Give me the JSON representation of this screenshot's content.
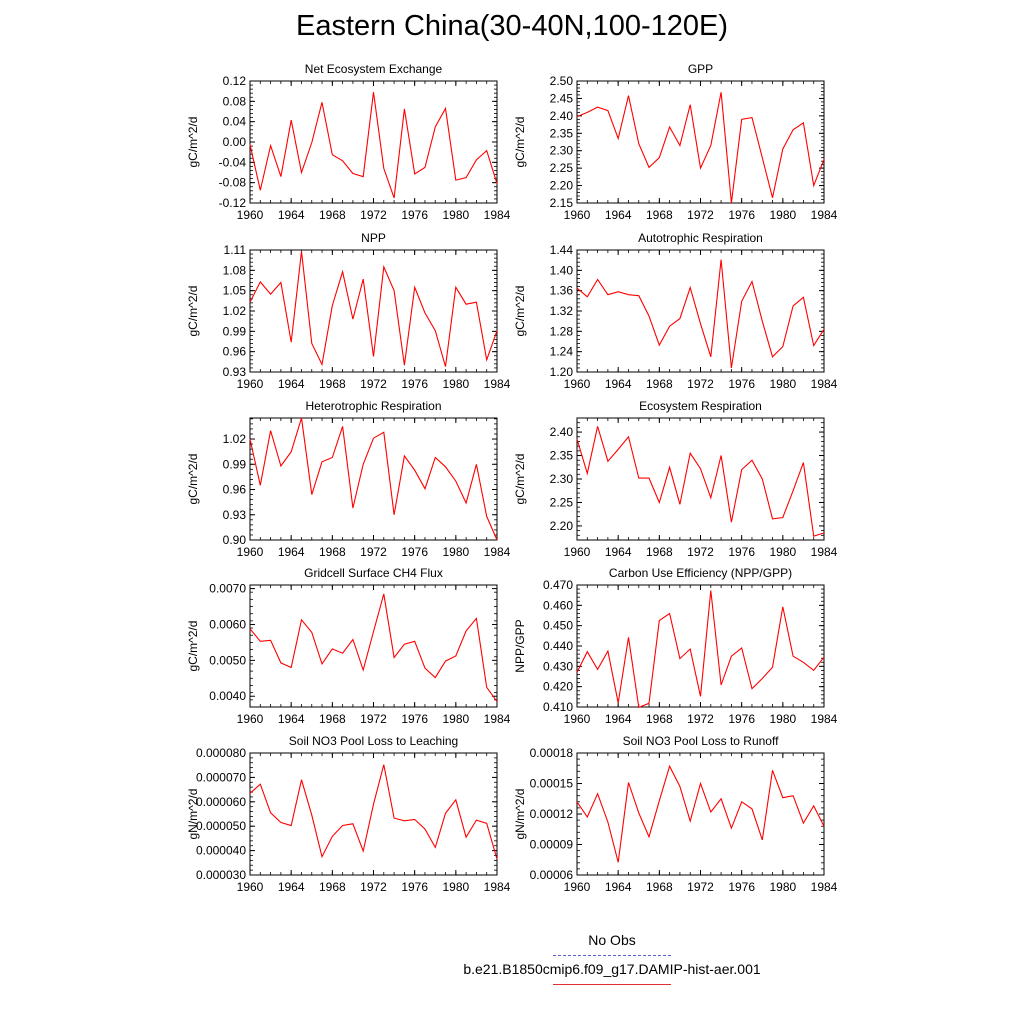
{
  "figure": {
    "title": "Eastern China(30-40N,100-120E)",
    "legend": [
      {
        "label": "No Obs",
        "color": "#5a5ad8",
        "style": "dashed"
      },
      {
        "label": "b.e21.B1850cmip6.f09_g17.DAMIP-hist-aer.001",
        "color": "#e03030",
        "style": "solid"
      }
    ]
  },
  "chart_data": [
    {
      "type": "line",
      "title": "Net Ecosystem Exchange",
      "ylabel": "gC/m^2/d",
      "ylim": [
        -0.12,
        0.12
      ],
      "yticks": [
        "-0.12",
        "-0.08",
        "-0.04",
        "0.00",
        "0.04",
        "0.08",
        "0.12"
      ],
      "xlim": [
        1960,
        1984
      ],
      "xticks": [
        "1960",
        "1964",
        "1968",
        "1972",
        "1976",
        "1980",
        "1984"
      ],
      "color": "#ff0000",
      "x": [
        1960,
        1961,
        1962,
        1963,
        1964,
        1965,
        1966,
        1967,
        1968,
        1969,
        1970,
        1971,
        1972,
        1973,
        1974,
        1975,
        1976,
        1977,
        1978,
        1979,
        1980,
        1981,
        1982,
        1983,
        1984
      ],
      "y": [
        -0.005,
        -0.095,
        -0.007,
        -0.068,
        0.043,
        -0.06,
        -0.001,
        0.078,
        -0.025,
        -0.037,
        -0.062,
        -0.068,
        0.098,
        -0.052,
        -0.11,
        0.065,
        -0.063,
        -0.05,
        0.03,
        0.066,
        -0.075,
        -0.07,
        -0.035,
        -0.017,
        -0.082
      ]
    },
    {
      "type": "line",
      "title": "GPP",
      "ylabel": "gC/m^2/d",
      "ylim": [
        2.15,
        2.5
      ],
      "yticks": [
        "2.15",
        "2.20",
        "2.25",
        "2.30",
        "2.35",
        "2.40",
        "2.45",
        "2.50"
      ],
      "xlim": [
        1960,
        1984
      ],
      "xticks": [
        "1960",
        "1964",
        "1968",
        "1972",
        "1976",
        "1980",
        "1984"
      ],
      "color": "#ff0000",
      "x": [
        1960,
        1961,
        1962,
        1963,
        1964,
        1965,
        1966,
        1967,
        1968,
        1969,
        1970,
        1971,
        1972,
        1973,
        1974,
        1975,
        1976,
        1977,
        1978,
        1979,
        1980,
        1981,
        1982,
        1983,
        1984
      ],
      "y": [
        2.398,
        2.41,
        2.425,
        2.415,
        2.335,
        2.458,
        2.32,
        2.252,
        2.28,
        2.368,
        2.315,
        2.432,
        2.25,
        2.315,
        2.468,
        2.15,
        2.39,
        2.395,
        2.28,
        2.165,
        2.305,
        2.36,
        2.38,
        2.2,
        2.275
      ]
    },
    {
      "type": "line",
      "title": "NPP",
      "ylabel": "gC/m^2/d",
      "ylim": [
        0.93,
        1.11
      ],
      "yticks": [
        "0.93",
        "0.96",
        "0.99",
        "1.02",
        "1.05",
        "1.08",
        "1.11"
      ],
      "xlim": [
        1960,
        1984
      ],
      "xticks": [
        "1960",
        "1964",
        "1968",
        "1972",
        "1976",
        "1980",
        "1984"
      ],
      "color": "#ff0000",
      "x": [
        1960,
        1961,
        1962,
        1963,
        1964,
        1965,
        1966,
        1967,
        1968,
        1969,
        1970,
        1971,
        1972,
        1973,
        1974,
        1975,
        1976,
        1977,
        1978,
        1979,
        1980,
        1981,
        1982,
        1983,
        1984
      ],
      "y": [
        1.033,
        1.063,
        1.045,
        1.062,
        0.974,
        1.108,
        0.972,
        0.941,
        1.028,
        1.078,
        1.008,
        1.067,
        0.953,
        1.085,
        1.05,
        0.94,
        1.055,
        1.017,
        0.991,
        0.938,
        1.055,
        1.03,
        1.033,
        0.948,
        0.991
      ]
    },
    {
      "type": "line",
      "title": "Autotrophic Respiration",
      "ylabel": "gC/m^2/d",
      "ylim": [
        1.2,
        1.44
      ],
      "yticks": [
        "1.20",
        "1.24",
        "1.28",
        "1.32",
        "1.36",
        "1.40",
        "1.44"
      ],
      "xlim": [
        1960,
        1984
      ],
      "xticks": [
        "1960",
        "1964",
        "1968",
        "1972",
        "1976",
        "1980",
        "1984"
      ],
      "color": "#ff0000",
      "x": [
        1960,
        1961,
        1962,
        1963,
        1964,
        1965,
        1966,
        1967,
        1968,
        1969,
        1970,
        1971,
        1972,
        1973,
        1974,
        1975,
        1976,
        1977,
        1978,
        1979,
        1980,
        1981,
        1982,
        1983,
        1984
      ],
      "y": [
        1.365,
        1.348,
        1.382,
        1.352,
        1.358,
        1.352,
        1.35,
        1.31,
        1.253,
        1.29,
        1.305,
        1.366,
        1.295,
        1.23,
        1.421,
        1.208,
        1.339,
        1.378,
        1.3,
        1.23,
        1.25,
        1.33,
        1.347,
        1.252,
        1.284
      ]
    },
    {
      "type": "line",
      "title": "Heterotrophic Respiration",
      "ylabel": "gC/m^2/d",
      "ylim": [
        0.9,
        1.045
      ],
      "yticks": [
        "0.90",
        "0.93",
        "0.96",
        "0.99",
        "1.02"
      ],
      "xlim": [
        1960,
        1984
      ],
      "xticks": [
        "1960",
        "1964",
        "1968",
        "1972",
        "1976",
        "1980",
        "1984"
      ],
      "color": "#ff0000",
      "x": [
        1960,
        1961,
        1962,
        1963,
        1964,
        1965,
        1966,
        1967,
        1968,
        1969,
        1970,
        1971,
        1972,
        1973,
        1974,
        1975,
        1976,
        1977,
        1978,
        1979,
        1980,
        1981,
        1982,
        1983,
        1984
      ],
      "y": [
        1.02,
        0.965,
        1.03,
        0.988,
        1.005,
        1.045,
        0.954,
        0.993,
        0.998,
        1.035,
        0.938,
        0.99,
        1.021,
        1.028,
        0.93,
        1.0,
        0.983,
        0.961,
        0.998,
        0.987,
        0.97,
        0.944,
        0.99,
        0.928,
        0.9
      ]
    },
    {
      "type": "line",
      "title": "Ecosystem Respiration",
      "ylabel": "gC/m^2/d",
      "ylim": [
        2.17,
        2.43
      ],
      "yticks": [
        "2.20",
        "2.25",
        "2.30",
        "2.35",
        "2.40"
      ],
      "xlim": [
        1960,
        1984
      ],
      "xticks": [
        "1960",
        "1964",
        "1968",
        "1972",
        "1976",
        "1980",
        "1984"
      ],
      "color": "#ff0000",
      "x": [
        1960,
        1961,
        1962,
        1963,
        1964,
        1965,
        1966,
        1967,
        1968,
        1969,
        1970,
        1971,
        1972,
        1973,
        1974,
        1975,
        1976,
        1977,
        1978,
        1979,
        1980,
        1981,
        1982,
        1983,
        1984
      ],
      "y": [
        2.385,
        2.312,
        2.412,
        2.338,
        2.363,
        2.39,
        2.302,
        2.302,
        2.25,
        2.325,
        2.246,
        2.355,
        2.322,
        2.26,
        2.35,
        2.208,
        2.32,
        2.34,
        2.3,
        2.215,
        2.218,
        2.275,
        2.335,
        2.178,
        2.185
      ]
    },
    {
      "type": "line",
      "title": "Gridcell Surface CH4 Flux",
      "ylabel": "gC/m^2/d",
      "ylim": [
        0.0037,
        0.0071
      ],
      "yticks": [
        "0.0040",
        "0.0050",
        "0.0060",
        "0.0070"
      ],
      "xlim": [
        1960,
        1984
      ],
      "xticks": [
        "1960",
        "1964",
        "1968",
        "1972",
        "1976",
        "1980",
        "1984"
      ],
      "color": "#ff0000",
      "x": [
        1960,
        1961,
        1962,
        1963,
        1964,
        1965,
        1966,
        1967,
        1968,
        1969,
        1970,
        1971,
        1972,
        1973,
        1974,
        1975,
        1976,
        1977,
        1978,
        1979,
        1980,
        1981,
        1982,
        1983,
        1984
      ],
      "y": [
        0.00588,
        0.00553,
        0.00556,
        0.00493,
        0.0048,
        0.00613,
        0.00578,
        0.0049,
        0.00532,
        0.0052,
        0.00558,
        0.00473,
        0.0058,
        0.00685,
        0.00508,
        0.00545,
        0.00553,
        0.00478,
        0.00452,
        0.00498,
        0.00512,
        0.00582,
        0.00617,
        0.00425,
        0.00385
      ]
    },
    {
      "type": "line",
      "title": "Carbon Use Efficiency (NPP/GPP)",
      "ylabel": "NPP/GPP",
      "ylim": [
        0.41,
        0.47
      ],
      "yticks": [
        "0.410",
        "0.420",
        "0.430",
        "0.440",
        "0.450",
        "0.460",
        "0.470"
      ],
      "xlim": [
        1960,
        1984
      ],
      "xticks": [
        "1960",
        "1964",
        "1968",
        "1972",
        "1976",
        "1980",
        "1984"
      ],
      "color": "#ff0000",
      "x": [
        1960,
        1961,
        1962,
        1963,
        1964,
        1965,
        1966,
        1967,
        1968,
        1969,
        1970,
        1971,
        1972,
        1973,
        1974,
        1975,
        1976,
        1977,
        1978,
        1979,
        1980,
        1981,
        1982,
        1983,
        1984
      ],
      "y": [
        0.427,
        0.4372,
        0.4285,
        0.4375,
        0.412,
        0.4443,
        0.4098,
        0.4118,
        0.4525,
        0.456,
        0.4338,
        0.4385,
        0.4152,
        0.4673,
        0.4208,
        0.435,
        0.439,
        0.419,
        0.424,
        0.4295,
        0.4593,
        0.435,
        0.432,
        0.428,
        0.4345
      ]
    },
    {
      "type": "line",
      "title": "Soil NO3 Pool Loss to Leaching",
      "ylabel": "gN/m^2/d",
      "ylim": [
        3e-05,
        8e-05
      ],
      "yticks": [
        "0.000030",
        "0.000040",
        "0.000050",
        "0.000060",
        "0.000070",
        "0.000080"
      ],
      "xlim": [
        1960,
        1984
      ],
      "xticks": [
        "1960",
        "1964",
        "1968",
        "1972",
        "1976",
        "1980",
        "1984"
      ],
      "color": "#ff0000",
      "x": [
        1960,
        1961,
        1962,
        1963,
        1964,
        1965,
        1966,
        1967,
        1968,
        1969,
        1970,
        1971,
        1972,
        1973,
        1974,
        1975,
        1976,
        1977,
        1978,
        1979,
        1980,
        1981,
        1982,
        1983,
        1984
      ],
      "y": [
        6.35e-05,
        6.72e-05,
        5.55e-05,
        5.15e-05,
        5.03e-05,
        6.9e-05,
        5.45e-05,
        3.75e-05,
        4.58e-05,
        5.03e-05,
        5.1e-05,
        3.98e-05,
        5.9e-05,
        7.52e-05,
        5.33e-05,
        5.22e-05,
        5.28e-05,
        4.88e-05,
        4.13e-05,
        5.53e-05,
        6.08e-05,
        4.55e-05,
        5.25e-05,
        5.12e-05,
        3.65e-05
      ]
    },
    {
      "type": "line",
      "title": "Soil NO3 Pool Loss to Runoff",
      "ylabel": "gN/m^2/d",
      "ylim": [
        6e-05,
        0.00018
      ],
      "yticks": [
        "0.00006",
        "0.00009",
        "0.00012",
        "0.00015",
        "0.00018"
      ],
      "xlim": [
        1960,
        1984
      ],
      "xticks": [
        "1960",
        "1964",
        "1968",
        "1972",
        "1976",
        "1980",
        "1984"
      ],
      "color": "#ff0000",
      "x": [
        1960,
        1961,
        1962,
        1963,
        1964,
        1965,
        1966,
        1967,
        1968,
        1969,
        1970,
        1971,
        1972,
        1973,
        1974,
        1975,
        1976,
        1977,
        1978,
        1979,
        1980,
        1981,
        1982,
        1983,
        1984
      ],
      "y": [
        0.000132,
        0.000117,
        0.00014,
        0.000112,
        7.25e-05,
        0.000151,
        0.000121,
        9.76e-05,
        0.000133,
        0.000167,
        0.000147,
        0.000113,
        0.00015,
        0.000122,
        0.000135,
        0.000106,
        0.000132,
        0.000125,
        9.45e-05,
        0.000163,
        0.000136,
        0.000138,
        0.000111,
        0.000128,
        0.000108
      ]
    }
  ]
}
